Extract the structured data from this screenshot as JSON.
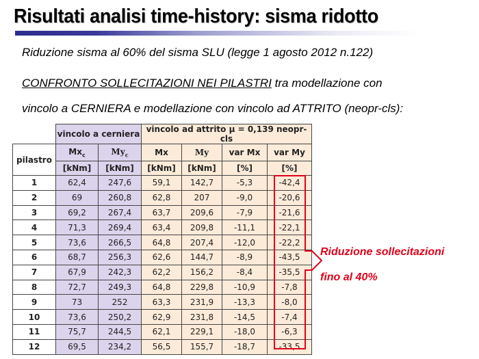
{
  "title": "Risultati analisi time-history: sisma ridotto",
  "subtitle": "Riduzione sisma al 60% del sisma SLU (legge 1 agosto 2012 n.122)",
  "intro": {
    "heading": "CONFRONTO SOLLECITAZIONI NEI PILASTRI",
    "text1": " tra modellazione con",
    "text2": "vincolo a CERNIERA e modellazione con vincolo ad ATTRITO  (neopr-cls):"
  },
  "table": {
    "group1": "vincolo a cerniera",
    "group2": "vincolo ad attrito μ = 0,139 neopr-cls",
    "col_pilastro": "pilastro",
    "cols": [
      "Mx",
      "My",
      "Mx",
      "My",
      "var Mx",
      "var My"
    ],
    "col_sub": [
      "c",
      "c",
      "",
      "",
      "",
      ""
    ],
    "units": [
      "[kNm]",
      "[kNm]",
      "[kNm]",
      "[kNm]",
      "[%]",
      "[%]"
    ],
    "rows": [
      [
        "1",
        "62,4",
        "247,6",
        "59,1",
        "142,7",
        "-5,3",
        "-42,4"
      ],
      [
        "2",
        "69",
        "260,8",
        "62,8",
        "207",
        "-9,0",
        "-20,6"
      ],
      [
        "3",
        "69,2",
        "267,4",
        "63,7",
        "209,6",
        "-7,9",
        "-21,6"
      ],
      [
        "4",
        "71,3",
        "269,4",
        "63,4",
        "209,8",
        "-11,1",
        "-22,1"
      ],
      [
        "5",
        "73,6",
        "266,5",
        "64,8",
        "207,4",
        "-12,0",
        "-22,2"
      ],
      [
        "6",
        "68,7",
        "256,3",
        "62,6",
        "144,7",
        "-8,9",
        "-43,5"
      ],
      [
        "7",
        "67,9",
        "242,3",
        "62,2",
        "156,2",
        "-8,4",
        "-35,5"
      ],
      [
        "8",
        "72,7",
        "249,3",
        "64,8",
        "229,8",
        "-10,9",
        "-7,8"
      ],
      [
        "9",
        "73",
        "252",
        "63,3",
        "231,9",
        "-13,3",
        "-8,0"
      ],
      [
        "10",
        "73,6",
        "250,2",
        "62,9",
        "231,8",
        "-14,5",
        "-7,4"
      ],
      [
        "11",
        "75,7",
        "244,5",
        "62,1",
        "229,1",
        "-18,0",
        "-6,3"
      ],
      [
        "12",
        "69,5",
        "234,2",
        "56,5",
        "155,7",
        "-18,7",
        "-33,5"
      ]
    ]
  },
  "callout": {
    "line1": "Riduzione sollecitazioni",
    "line2": "fino al 40%",
    "color": "#e0001a"
  },
  "colors": {
    "cerniera_bg": "#dcd3ec",
    "attrito_bg": "#fdebd9",
    "title_bar": "#2d2d8f"
  }
}
